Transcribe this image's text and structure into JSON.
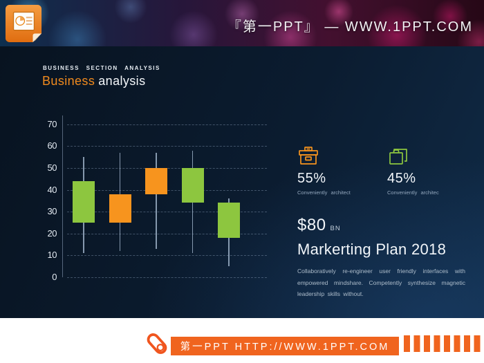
{
  "header": {
    "site_title": "『第一PPT』 — WWW.1PPT.COM"
  },
  "slide": {
    "eyebrow": "BUSINESS SECTION ANALYSIS",
    "title_accent": "Business",
    "title_rest": "analysis",
    "stats": [
      {
        "icon": "archive-box-icon",
        "icon_color": "#f7941e",
        "value": "55%",
        "caption": "Conveniently architect"
      },
      {
        "icon": "briefcase-icon",
        "icon_color": "#8dc63f",
        "value": "45%",
        "caption": "Conveniently architec"
      }
    ],
    "amount": "$80",
    "amount_unit": "BN",
    "heading": "Markerting Plan 2018",
    "body": "Collaboratively re-engineer user friendly interfaces with empowered mindshare. Competently synthesize magnetic leadership skills without."
  },
  "chart_data": {
    "type": "candlestick",
    "title": "",
    "xlabel": "",
    "ylabel": "",
    "yticks": [
      0,
      10,
      20,
      30,
      40,
      50,
      60,
      70
    ],
    "ylim": [
      0,
      74
    ],
    "grid": "dashed-horizontal",
    "colors": {
      "up_green": "#8dc63f",
      "down_orange": "#f7941e",
      "wick": "#a5b9d0"
    },
    "candles": [
      {
        "low": 11,
        "open": 25,
        "close": 44,
        "high": 55,
        "color": "#8dc63f"
      },
      {
        "low": 12,
        "open": 25,
        "close": 38,
        "high": 57,
        "color": "#f7941e"
      },
      {
        "low": 13,
        "open": 38,
        "close": 50,
        "high": 57,
        "color": "#f7941e"
      },
      {
        "low": 11,
        "open": 34,
        "close": 50,
        "high": 58,
        "color": "#8dc63f"
      },
      {
        "low": 5,
        "open": 18,
        "close": 34,
        "high": 36,
        "color": "#8dc63f"
      }
    ]
  },
  "footer": {
    "site_label": "第一PPT HTTP://WWW.1PPT.COM",
    "accent_color": "#f0641e"
  }
}
